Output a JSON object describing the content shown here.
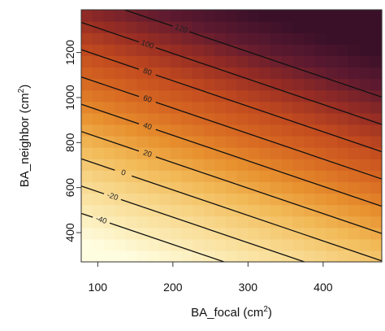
{
  "chart_data": {
    "type": "heatmap",
    "title": "",
    "xlabel": "BA_focal",
    "xlabel_unit_base": "cm",
    "xlabel_unit_exp": "2",
    "ylabel": "BA_neighbor",
    "ylabel_unit_base": "cm",
    "ylabel_unit_exp": "2",
    "xlim": [
      78,
      478
    ],
    "ylim": [
      270,
      1390
    ],
    "x_ticks": [
      100,
      200,
      300,
      400
    ],
    "x_tick_labels": [
      "100",
      "200",
      "300",
      "400"
    ],
    "y_ticks": [
      400,
      600,
      800,
      1000,
      1200
    ],
    "y_tick_labels": [
      "400",
      "600",
      "800",
      "1000",
      "1200"
    ],
    "grid": false,
    "surface": {
      "z_at_x_100_y_400": -50,
      "dz_dx": 0.187,
      "dz_dy": 0.165,
      "min": -60,
      "max": 150
    },
    "contours": [
      {
        "level": -40,
        "label": "-40"
      },
      {
        "level": -20,
        "label": "-20"
      },
      {
        "level": 0,
        "label": "0"
      },
      {
        "level": 20,
        "label": "20"
      },
      {
        "level": 40,
        "label": "40"
      },
      {
        "level": 60,
        "label": "60"
      },
      {
        "level": 80,
        "label": "80"
      },
      {
        "level": 100,
        "label": "100"
      },
      {
        "level": 120,
        "label": "120"
      }
    ],
    "colormap": [
      "#fffde0",
      "#fbeab2",
      "#f7d588",
      "#f2ba58",
      "#e8912f",
      "#d86a22",
      "#c34b1f",
      "#962c24",
      "#5e1a30",
      "#3a1028"
    ]
  }
}
